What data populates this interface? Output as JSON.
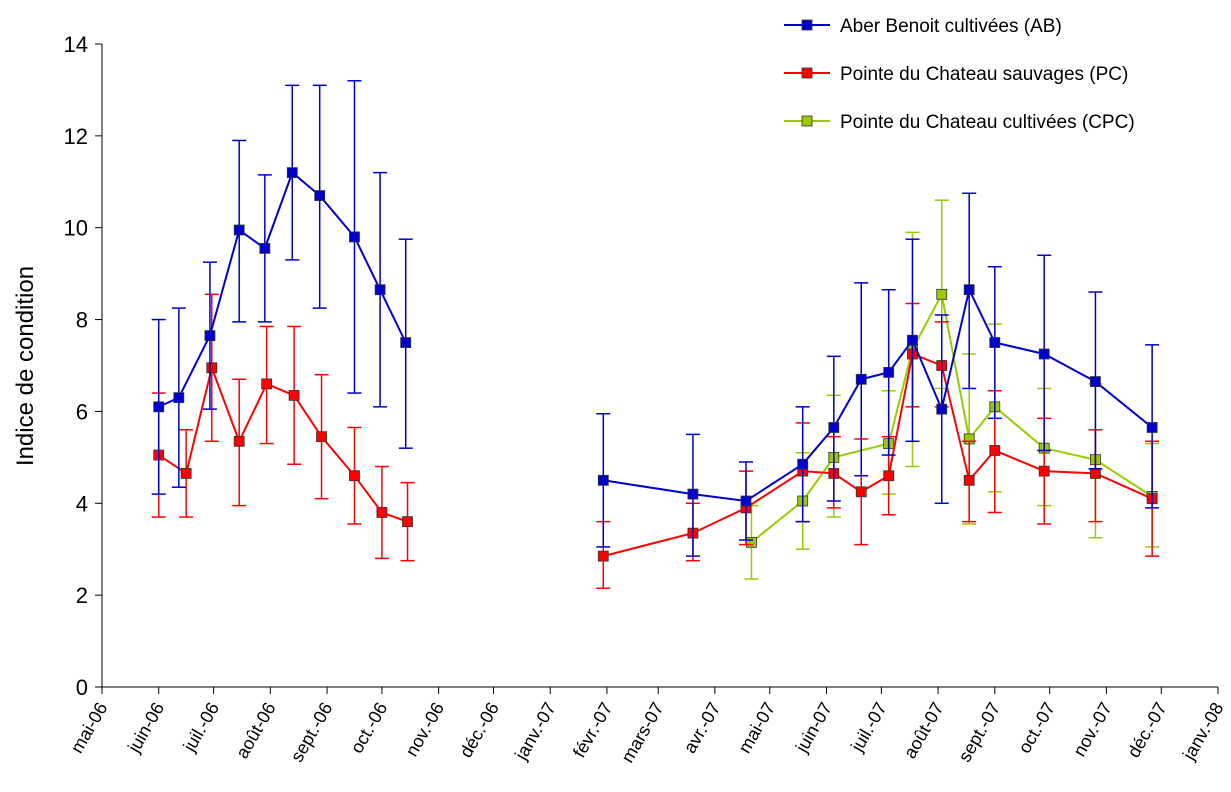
{
  "chart_data": {
    "type": "line",
    "title": "",
    "ylabel": "Indice de condition",
    "xlabel": "",
    "ylim": [
      0,
      14
    ],
    "yticks": [
      0,
      2,
      4,
      6,
      8,
      10,
      12,
      14
    ],
    "x_axis_type": "date",
    "x_range": [
      "2006-05-01",
      "2008-01-01"
    ],
    "xtick_labels": [
      "mai-06",
      "juin-06",
      "juil.-06",
      "août-06",
      "sept.-06",
      "oct.-06",
      "nov.-06",
      "déc.-06",
      "janv.-07",
      "févr.-07",
      "mars-07",
      "avr.-07",
      "mai-07",
      "juin-07",
      "juil.-07",
      "août-07",
      "sept.-07",
      "oct.-07",
      "nov.-07",
      "déc.-07",
      "janv.-08"
    ],
    "xtick_dates": [
      "2006-05-01",
      "2006-06-01",
      "2006-07-01",
      "2006-08-01",
      "2006-09-01",
      "2006-10-01",
      "2006-11-01",
      "2006-12-01",
      "2007-01-01",
      "2007-02-01",
      "2007-03-01",
      "2007-04-01",
      "2007-05-01",
      "2007-06-01",
      "2007-07-01",
      "2007-08-01",
      "2007-09-01",
      "2007-10-01",
      "2007-11-01",
      "2007-12-01",
      "2008-01-01"
    ],
    "grid": false,
    "legend_position": "top-right",
    "series": [
      {
        "name": "Aber Benoit cultivées (AB)",
        "color": "#0000CC",
        "marker": "square",
        "points": [
          {
            "x": "2006-06-01",
            "y": 6.1,
            "low": 4.2,
            "high": 8.0
          },
          {
            "x": "2006-06-12",
            "y": 6.3,
            "low": 4.35,
            "high": 8.25
          },
          {
            "x": "2006-06-29",
            "y": 7.65,
            "low": 6.05,
            "high": 9.25
          },
          {
            "x": "2006-07-15",
            "y": 9.95,
            "low": 7.95,
            "high": 11.9
          },
          {
            "x": "2006-07-29",
            "y": 9.55,
            "low": 7.95,
            "high": 11.15
          },
          {
            "x": "2006-08-13",
            "y": 11.2,
            "low": 9.3,
            "high": 13.1
          },
          {
            "x": "2006-08-28",
            "y": 10.7,
            "low": 8.25,
            "high": 13.1
          },
          {
            "x": "2006-09-16",
            "y": 9.8,
            "low": 6.4,
            "high": 13.2
          },
          {
            "x": "2006-09-30",
            "y": 8.65,
            "low": 6.1,
            "high": 11.2
          },
          {
            "x": "2006-10-14",
            "y": 7.5,
            "low": 5.2,
            "high": 9.75
          },
          {
            "x": "2007-01-30",
            "y": 4.5,
            "low": 3.05,
            "high": 5.95
          },
          {
            "x": "2007-03-20",
            "y": 4.2,
            "low": 2.85,
            "high": 5.5
          },
          {
            "x": "2007-04-18",
            "y": 4.05,
            "low": 3.2,
            "high": 4.9
          },
          {
            "x": "2007-05-19",
            "y": 4.85,
            "low": 3.6,
            "high": 6.1
          },
          {
            "x": "2007-06-05",
            "y": 5.65,
            "low": 4.05,
            "high": 7.2
          },
          {
            "x": "2007-06-20",
            "y": 6.7,
            "low": 4.6,
            "high": 8.8
          },
          {
            "x": "2007-07-05",
            "y": 6.85,
            "low": 5.05,
            "high": 8.65
          },
          {
            "x": "2007-07-18",
            "y": 7.55,
            "low": 5.35,
            "high": 9.75
          },
          {
            "x": "2007-08-03",
            "y": 6.05,
            "low": 4.0,
            "high": 8.1
          },
          {
            "x": "2007-08-18",
            "y": 8.65,
            "low": 6.5,
            "high": 10.75
          },
          {
            "x": "2007-09-01",
            "y": 7.5,
            "low": 5.85,
            "high": 9.15
          },
          {
            "x": "2007-09-28",
            "y": 7.25,
            "low": 5.15,
            "high": 9.4
          },
          {
            "x": "2007-10-26",
            "y": 6.65,
            "low": 4.75,
            "high": 8.6
          },
          {
            "x": "2007-11-26",
            "y": 5.65,
            "low": 3.9,
            "high": 7.45
          }
        ]
      },
      {
        "name": "Pointe du Chateau sauvages (PC)",
        "color": "#FF0000",
        "marker": "square",
        "points": [
          {
            "x": "2006-06-01",
            "y": 5.05,
            "low": 3.7,
            "high": 6.4
          },
          {
            "x": "2006-06-16",
            "y": 4.65,
            "low": 3.7,
            "high": 5.6
          },
          {
            "x": "2006-06-30",
            "y": 6.95,
            "low": 5.35,
            "high": 8.55
          },
          {
            "x": "2006-07-15",
            "y": 5.35,
            "low": 3.95,
            "high": 6.7
          },
          {
            "x": "2006-07-30",
            "y": 6.6,
            "low": 5.3,
            "high": 7.85
          },
          {
            "x": "2006-08-14",
            "y": 6.35,
            "low": 4.85,
            "high": 7.85
          },
          {
            "x": "2006-08-29",
            "y": 5.45,
            "low": 4.1,
            "high": 6.8
          },
          {
            "x": "2006-09-16",
            "y": 4.6,
            "low": 3.55,
            "high": 5.65
          },
          {
            "x": "2006-10-01",
            "y": 3.8,
            "low": 2.8,
            "high": 4.8
          },
          {
            "x": "2006-10-15",
            "y": 3.6,
            "low": 2.75,
            "high": 4.45
          },
          {
            "x": "2007-01-30",
            "y": 2.85,
            "low": 2.15,
            "high": 3.6
          },
          {
            "x": "2007-03-20",
            "y": 3.35,
            "low": 2.75,
            "high": 4.0
          },
          {
            "x": "2007-04-18",
            "y": 3.9,
            "low": 3.1,
            "high": 4.7
          },
          {
            "x": "2007-05-19",
            "y": 4.7,
            "low": 3.6,
            "high": 5.75
          },
          {
            "x": "2007-06-05",
            "y": 4.65,
            "low": 3.9,
            "high": 5.45
          },
          {
            "x": "2007-06-20",
            "y": 4.25,
            "low": 3.1,
            "high": 5.4
          },
          {
            "x": "2007-07-05",
            "y": 4.6,
            "low": 3.75,
            "high": 5.45
          },
          {
            "x": "2007-07-18",
            "y": 7.25,
            "low": 6.1,
            "high": 8.35
          },
          {
            "x": "2007-08-03",
            "y": 7.0,
            "low": 6.1,
            "high": 7.95
          },
          {
            "x": "2007-08-18",
            "y": 4.5,
            "low": 3.6,
            "high": 5.35
          },
          {
            "x": "2007-09-01",
            "y": 5.15,
            "low": 3.8,
            "high": 6.45
          },
          {
            "x": "2007-09-28",
            "y": 4.7,
            "low": 3.55,
            "high": 5.85
          },
          {
            "x": "2007-10-26",
            "y": 4.65,
            "low": 3.6,
            "high": 5.6
          },
          {
            "x": "2007-11-26",
            "y": 4.1,
            "low": 2.85,
            "high": 5.35
          }
        ]
      },
      {
        "name": "Pointe du Chateau cultivées (CPC)",
        "color": "#99CC00",
        "marker": "square",
        "points": [
          {
            "x": "2007-04-21",
            "y": 3.15,
            "low": 2.35,
            "high": 3.95
          },
          {
            "x": "2007-05-19",
            "y": 4.05,
            "low": 3.0,
            "high": 5.1
          },
          {
            "x": "2007-06-05",
            "y": 5.0,
            "low": 3.7,
            "high": 6.35
          },
          {
            "x": "2007-07-05",
            "y": 5.3,
            "low": 4.2,
            "high": 6.45
          },
          {
            "x": "2007-07-18",
            "y": 7.35,
            "low": 4.8,
            "high": 9.9
          },
          {
            "x": "2007-08-03",
            "y": 8.55,
            "low": 6.5,
            "high": 10.6
          },
          {
            "x": "2007-08-18",
            "y": 5.4,
            "low": 3.55,
            "high": 7.25
          },
          {
            "x": "2007-09-01",
            "y": 6.1,
            "low": 4.25,
            "high": 7.9
          },
          {
            "x": "2007-09-28",
            "y": 5.2,
            "low": 3.95,
            "high": 6.5
          },
          {
            "x": "2007-10-26",
            "y": 4.95,
            "low": 3.25,
            "high": 6.6
          },
          {
            "x": "2007-11-26",
            "y": 4.15,
            "low": 3.05,
            "high": 5.3
          }
        ]
      }
    ]
  }
}
